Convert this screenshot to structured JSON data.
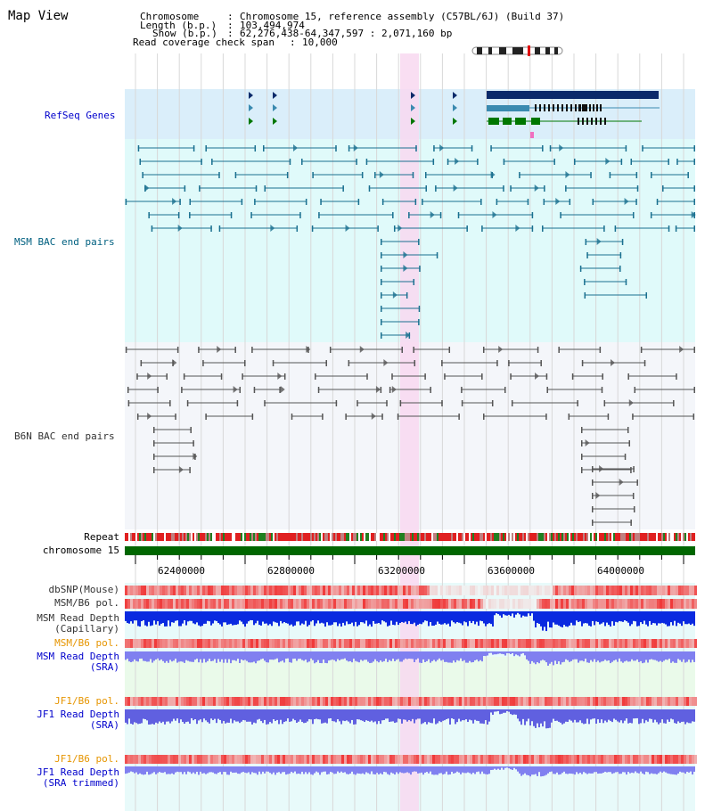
{
  "title": "Map View",
  "header": {
    "chromosome_key": "Chromosome",
    "chromosome_value": "Chromosome 15, reference assembly (C57BL/6J) (Build 37)",
    "length_key": "Length (b.p.)",
    "length_value": "103,494,974",
    "show_key": "Show (b.p.)",
    "show_value": "62,276,438-64,347,597 : 2,071,160 bp",
    "coverage_key": "Read coverage check span",
    "coverage_value": "10,000"
  },
  "tracks": {
    "refseq": "RefSeq Genes",
    "msm_bac": "MSM BAC end pairs",
    "b6n_bac": "B6N BAC end pairs",
    "repeat": "Repeat",
    "chromosome": "chromosome 15",
    "dbsnp": "dbSNP(Mouse)",
    "msm_b6_pol_1": "MSM/B6 pol.",
    "msm_depth_cap_1": "MSM Read Depth",
    "msm_depth_cap_2": "(Capillary)",
    "msm_b6_pol_2": "MSM/B6 pol.",
    "msm_depth_sra_1": "MSM Read Depth",
    "msm_depth_sra_2": "(SRA)",
    "jf1_b6_pol_1": "JF1/B6 pol.",
    "jf1_depth_sra_1": "JF1 Read Depth",
    "jf1_depth_sra_2": "(SRA)",
    "jf1_b6_pol_2": "JF1/B6 pol.",
    "jf1_depth_trim_1": "JF1 Read Depth",
    "jf1_depth_trim_2": "(SRA trimmed)"
  },
  "axis": {
    "ticks": [
      "62400000",
      "62800000",
      "63200000",
      "63600000",
      "64000000"
    ]
  },
  "colors": {
    "refseq_bg": "#daeefa",
    "msm_bg": "#e0fafa",
    "b6n_bg": "#f4f6fa",
    "highlight": "#f8d8f0",
    "chromosome_bar": "#006600",
    "label_blue": "#0000cc",
    "label_teal": "#006080",
    "label_orange": "#e69500"
  }
}
